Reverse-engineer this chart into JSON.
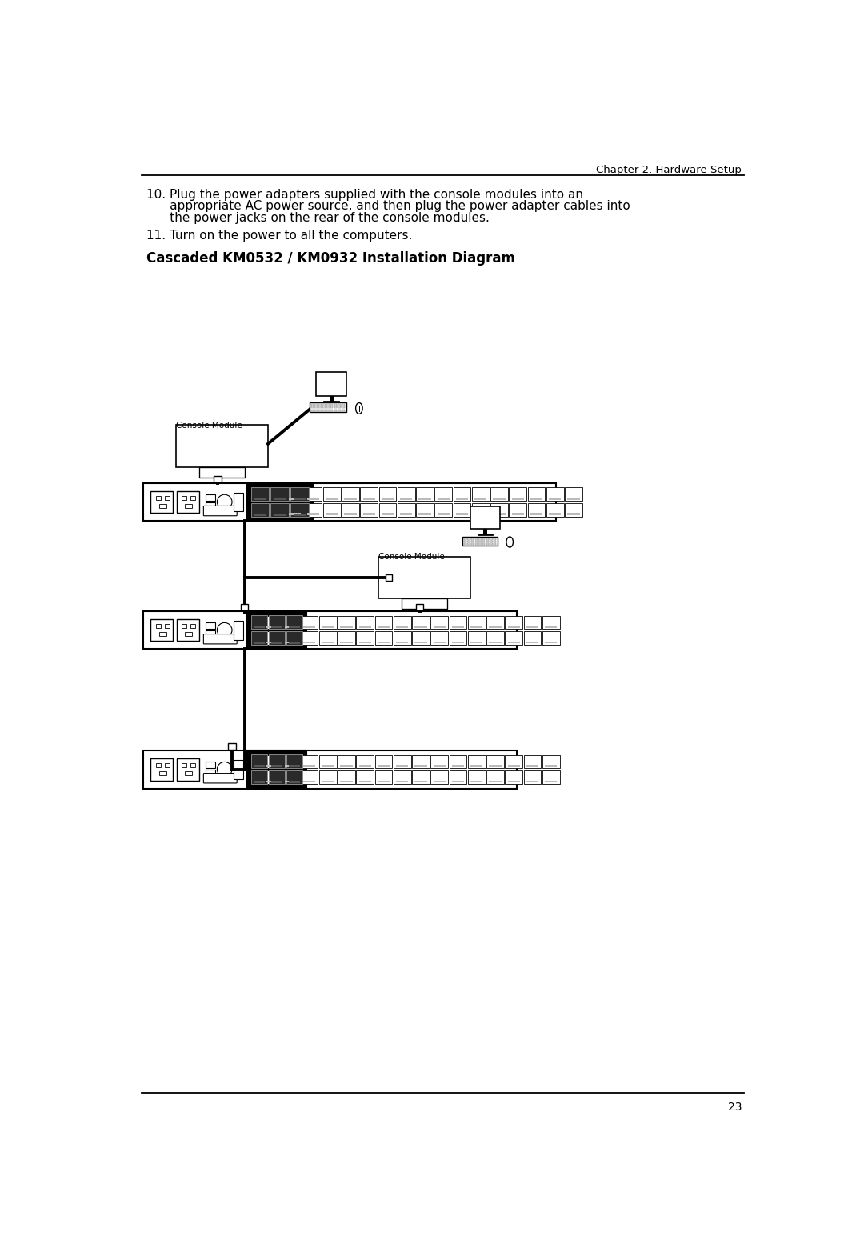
{
  "bg_color": "#ffffff",
  "header_text": "Chapter 2. Hardware Setup",
  "header_fontsize": 9.5,
  "footer_text": "23",
  "footer_fontsize": 10,
  "title_bold": "Cascaded KM0532 / KM0932 Installation Diagram",
  "title_fontsize": 12,
  "para10_line1": "10. Plug the power adapters supplied with the console modules into an",
  "para10_line2": "      appropriate AC power source, and then plug the power adapter cables into",
  "para10_line3": "      the power jacks on the rear of the console modules.",
  "para11": "11. Turn on the power to all the computers.",
  "body_fontsize": 11.0,
  "console_module_label": "Console Module",
  "label_fontsize": 7.5
}
